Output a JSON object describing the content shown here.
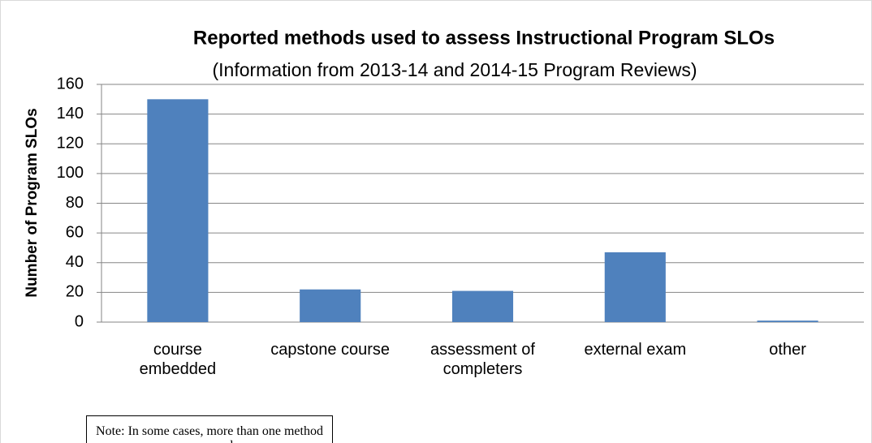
{
  "chart_data": {
    "type": "bar",
    "title": "Reported methods used to assess Instructional Program SLOs",
    "subtitle": "(Information from 2013-14 and 2014-15 Program Reviews)",
    "y_label": "Number of Program SLOs",
    "categories": [
      "course embedded",
      "capstone course",
      "assessment of completers",
      "external exam",
      "other"
    ],
    "values": [
      150,
      22,
      21,
      47,
      1
    ],
    "color": "#4f81bd",
    "ylim": [
      0,
      160
    ],
    "yticks": [
      0,
      20,
      40,
      60,
      80,
      100,
      120,
      140,
      160
    ],
    "grid": true,
    "note": "Note: In some cases, more than one method was used"
  }
}
